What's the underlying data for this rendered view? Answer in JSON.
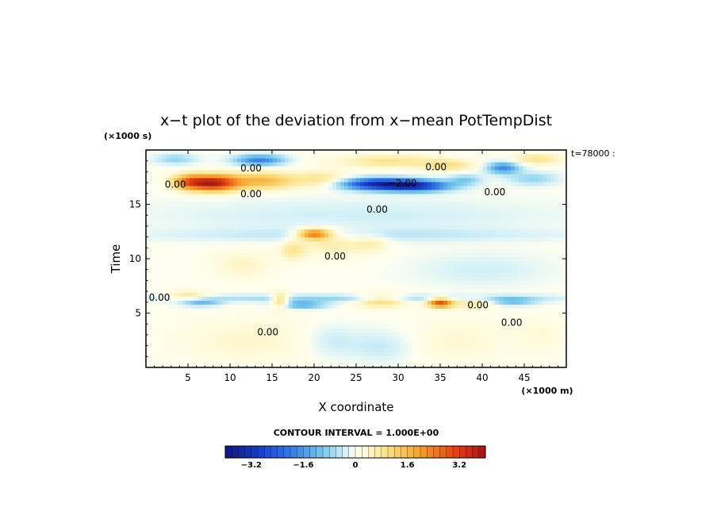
{
  "chart_data": {
    "type": "heatmap",
    "title": "x−t plot of the deviation from x−mean PotTempDist",
    "xlabel": "X coordinate",
    "ylabel": "Time",
    "x_unit": "(×1000 m)",
    "y_unit": "(×1000 s)",
    "xlim": [
      0,
      50
    ],
    "ylim": [
      0,
      20
    ],
    "x_ticks": [
      5,
      10,
      15,
      20,
      25,
      30,
      35,
      40,
      45
    ],
    "y_ticks": [
      5,
      10,
      15
    ],
    "time_note": "t=78000 :",
    "contour_interval_text": "CONTOUR INTERVAL = 1.000E+00",
    "colorbar": {
      "vmin": -4,
      "vmax": 4,
      "tick_values": [
        -3.2,
        -1.6,
        0,
        1.6,
        3.2
      ],
      "tick_labels": [
        "−3.2",
        "−1.6",
        "0",
        "1.6",
        "3.2"
      ]
    },
    "contour_labels": [
      {
        "x": 12.5,
        "y": 18.3,
        "text": "0.00"
      },
      {
        "x": 3.5,
        "y": 16.8,
        "text": "0.00"
      },
      {
        "x": 12.5,
        "y": 15.9,
        "text": "0.00"
      },
      {
        "x": 34.5,
        "y": 18.4,
        "text": "0.00"
      },
      {
        "x": 30.5,
        "y": 16.9,
        "text": "−2.00"
      },
      {
        "x": 41.5,
        "y": 16.1,
        "text": "0.00"
      },
      {
        "x": 27.5,
        "y": 14.5,
        "text": "0.00"
      },
      {
        "x": 22.5,
        "y": 10.2,
        "text": "0.00"
      },
      {
        "x": 1.6,
        "y": 6.4,
        "text": "0.00"
      },
      {
        "x": 39.5,
        "y": 5.7,
        "text": "0.00"
      },
      {
        "x": 43.5,
        "y": 4.1,
        "text": "0.00"
      },
      {
        "x": 14.5,
        "y": 3.2,
        "text": "0.00"
      }
    ],
    "anomalies": [
      {
        "x": 8.0,
        "y": 17.0,
        "sx": 3.0,
        "sy": 0.75,
        "amp": 3.6
      },
      {
        "x": 5.0,
        "y": 17.1,
        "sx": 2.0,
        "sy": 0.7,
        "amp": 1.8
      },
      {
        "x": 14.0,
        "y": 17.2,
        "sx": 4.0,
        "sy": 0.8,
        "amp": 1.6
      },
      {
        "x": 21.0,
        "y": 17.3,
        "sx": 3.0,
        "sy": 0.8,
        "amp": 0.9
      },
      {
        "x": 13.5,
        "y": 19.1,
        "sx": 3.0,
        "sy": 0.5,
        "amp": -1.9
      },
      {
        "x": 3.5,
        "y": 19.2,
        "sx": 2.5,
        "sy": 0.5,
        "amp": -0.8
      },
      {
        "x": 28.0,
        "y": 16.9,
        "sx": 5.0,
        "sy": 0.55,
        "amp": -3.3
      },
      {
        "x": 32.5,
        "y": 16.7,
        "sx": 4.0,
        "sy": 0.5,
        "amp": -2.2
      },
      {
        "x": 29.0,
        "y": 19.0,
        "sx": 6.0,
        "sy": 0.6,
        "amp": 0.9
      },
      {
        "x": 36.0,
        "y": 18.6,
        "sx": 3.0,
        "sy": 0.5,
        "amp": 0.9
      },
      {
        "x": 42.5,
        "y": 18.4,
        "sx": 2.0,
        "sy": 0.55,
        "amp": -1.8
      },
      {
        "x": 46.5,
        "y": 19.2,
        "sx": 3.0,
        "sy": 0.5,
        "amp": 0.9
      },
      {
        "x": 46.0,
        "y": 17.4,
        "sx": 3.0,
        "sy": 0.6,
        "amp": -0.8
      },
      {
        "x": 38.0,
        "y": 17.3,
        "sx": 2.0,
        "sy": 0.5,
        "amp": -0.9
      },
      {
        "x": 25.0,
        "y": 14.0,
        "sx": 25.0,
        "sy": 1.6,
        "amp": -0.35
      },
      {
        "x": 25.0,
        "y": 12.2,
        "sx": 25.0,
        "sy": 0.6,
        "amp": -0.45
      },
      {
        "x": 20.0,
        "y": 12.3,
        "sx": 2.0,
        "sy": 0.5,
        "amp": 2.6
      },
      {
        "x": 22.5,
        "y": 11.5,
        "sx": 4.0,
        "sy": 1.2,
        "amp": 0.7
      },
      {
        "x": 11.5,
        "y": 9.5,
        "sx": 3.5,
        "sy": 1.3,
        "amp": 0.45
      },
      {
        "x": 17.5,
        "y": 10.8,
        "sx": 1.5,
        "sy": 0.9,
        "amp": 0.8
      },
      {
        "x": 27.0,
        "y": 11.5,
        "sx": 2.0,
        "sy": 0.8,
        "amp": 0.5
      },
      {
        "x": 40.0,
        "y": 9.0,
        "sx": 8.0,
        "sy": 1.5,
        "amp": -0.35
      },
      {
        "x": 25.0,
        "y": 6.4,
        "sx": 25.0,
        "sy": 0.35,
        "amp": -0.8
      },
      {
        "x": 18.5,
        "y": 5.8,
        "sx": 3.0,
        "sy": 0.35,
        "amp": -1.4
      },
      {
        "x": 6.5,
        "y": 6.0,
        "sx": 2.5,
        "sy": 0.35,
        "amp": -1.2
      },
      {
        "x": 43.5,
        "y": 6.1,
        "sx": 3.0,
        "sy": 0.4,
        "amp": -1.0
      },
      {
        "x": 28.0,
        "y": 6.2,
        "sx": 3.0,
        "sy": 0.6,
        "amp": 1.3
      },
      {
        "x": 35.0,
        "y": 6.0,
        "sx": 1.5,
        "sy": 0.45,
        "amp": 3.0
      },
      {
        "x": 39.0,
        "y": 6.0,
        "sx": 2.5,
        "sy": 0.5,
        "amp": 0.9
      },
      {
        "x": 5.0,
        "y": 6.6,
        "sx": 2.5,
        "sy": 0.5,
        "amp": 0.9
      },
      {
        "x": 16.0,
        "y": 6.2,
        "sx": 1.0,
        "sy": 0.7,
        "amp": 1.6
      },
      {
        "x": 12.0,
        "y": 2.5,
        "sx": 8.0,
        "sy": 2.0,
        "amp": 0.4
      },
      {
        "x": 28.0,
        "y": 2.0,
        "sx": 4.0,
        "sy": 1.5,
        "amp": -0.45
      },
      {
        "x": 22.0,
        "y": 2.5,
        "sx": 3.0,
        "sy": 1.5,
        "amp": -0.4
      },
      {
        "x": 37.0,
        "y": 2.5,
        "sx": 6.0,
        "sy": 2.0,
        "amp": 0.35
      },
      {
        "x": 47.0,
        "y": 3.0,
        "sx": 3.0,
        "sy": 1.5,
        "amp": 0.3
      }
    ]
  }
}
